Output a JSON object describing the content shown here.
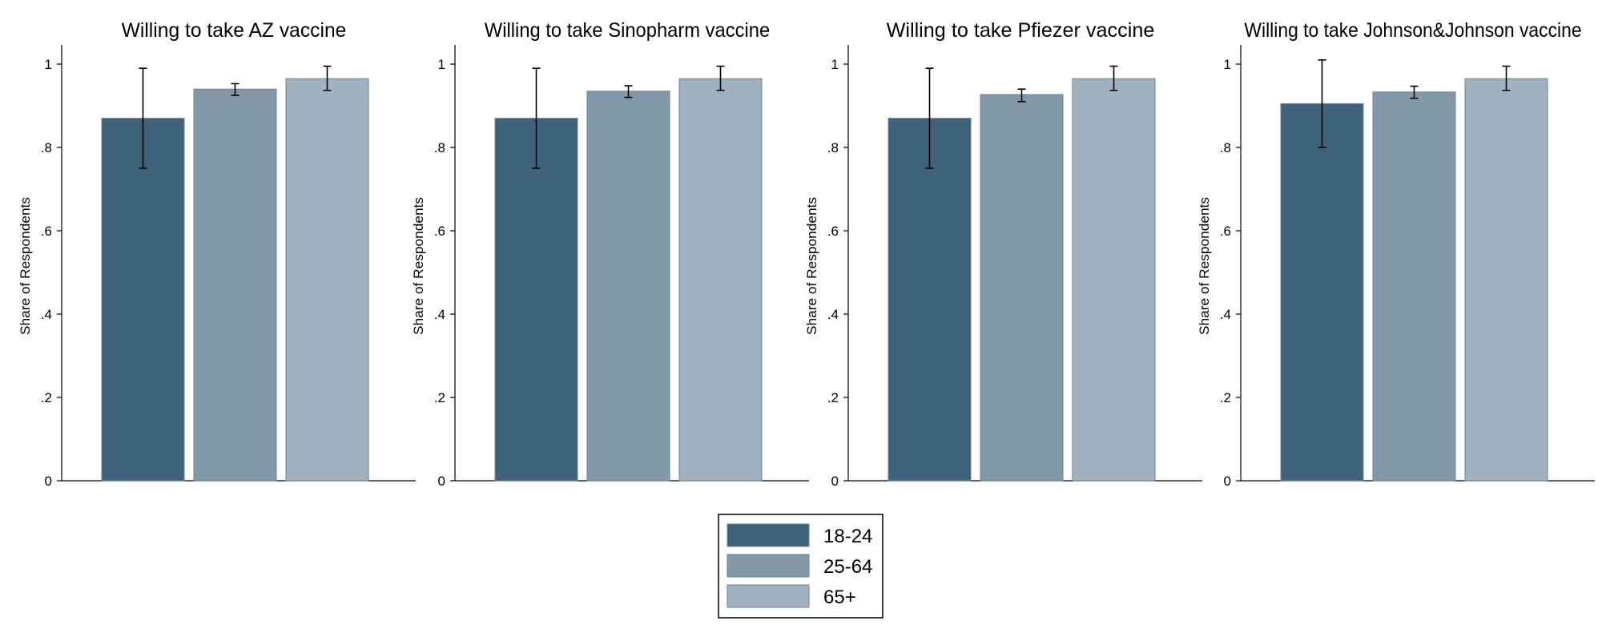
{
  "legend": {
    "placement": "bottom-center",
    "entries": [
      {
        "label": "18-24",
        "color": "#3f627b"
      },
      {
        "label": "25-64",
        "color": "#8399a8"
      },
      {
        "label": "65+",
        "color": "#a0b1bf"
      }
    ]
  },
  "chart_data": [
    {
      "type": "bar",
      "title": "Willing to take AZ vaccine",
      "ylabel": "Share of Respondents",
      "ylim": [
        0,
        1.05
      ],
      "yticks": [
        "0",
        ".2",
        ".4",
        ".6",
        ".8",
        "1"
      ],
      "grid": false,
      "series": [
        {
          "name": "18-24",
          "value": 0.87,
          "ci": [
            0.75,
            0.99
          ]
        },
        {
          "name": "25-64",
          "value": 0.94,
          "ci": [
            0.925,
            0.953
          ]
        },
        {
          "name": "65+",
          "value": 0.965,
          "ci": [
            0.937,
            0.995
          ]
        }
      ]
    },
    {
      "type": "bar",
      "title": "Willing to take Sinopharm vaccine",
      "ylabel": "Share of Respondents",
      "ylim": [
        0,
        1.05
      ],
      "yticks": [
        "0",
        ".2",
        ".4",
        ".6",
        ".8",
        "1"
      ],
      "grid": false,
      "series": [
        {
          "name": "18-24",
          "value": 0.87,
          "ci": [
            0.75,
            0.99
          ]
        },
        {
          "name": "25-64",
          "value": 0.935,
          "ci": [
            0.92,
            0.948
          ]
        },
        {
          "name": "65+",
          "value": 0.965,
          "ci": [
            0.937,
            0.995
          ]
        }
      ]
    },
    {
      "type": "bar",
      "title": "Willing to take Pfiezer vaccine",
      "ylabel": "Share of Respondents",
      "ylim": [
        0,
        1.05
      ],
      "yticks": [
        "0",
        ".2",
        ".4",
        ".6",
        ".8",
        "1"
      ],
      "grid": false,
      "series": [
        {
          "name": "18-24",
          "value": 0.87,
          "ci": [
            0.75,
            0.99
          ]
        },
        {
          "name": "25-64",
          "value": 0.927,
          "ci": [
            0.91,
            0.94
          ]
        },
        {
          "name": "65+",
          "value": 0.965,
          "ci": [
            0.937,
            0.995
          ]
        }
      ]
    },
    {
      "type": "bar",
      "title": "Willing to take Johnson&Johnson vaccine",
      "ylabel": "Share of Respondents",
      "ylim": [
        0,
        1.05
      ],
      "yticks": [
        "0",
        ".2",
        ".4",
        ".6",
        ".8",
        "1"
      ],
      "grid": false,
      "series": [
        {
          "name": "18-24",
          "value": 0.905,
          "ci": [
            0.8,
            1.01
          ]
        },
        {
          "name": "25-64",
          "value": 0.933,
          "ci": [
            0.918,
            0.947
          ]
        },
        {
          "name": "65+",
          "value": 0.965,
          "ci": [
            0.937,
            0.995
          ]
        }
      ]
    }
  ]
}
